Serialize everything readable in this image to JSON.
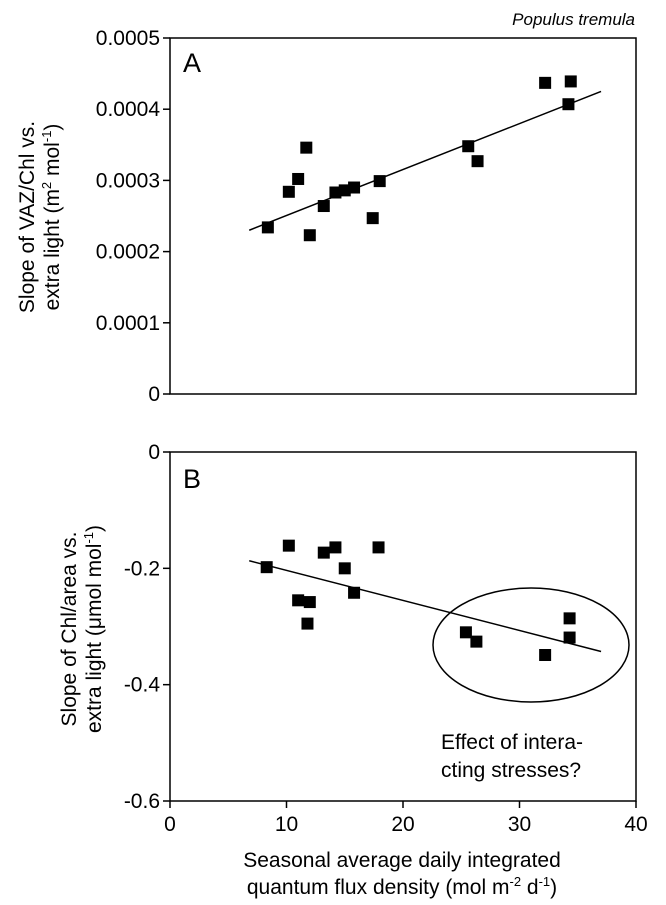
{
  "chart_data": [
    {
      "type": "scatter",
      "panel": "A",
      "species_label": "Populus tremula",
      "ylabel_line1": "Slope of VAZ/Chl vs.",
      "ylabel_line2_pre": "extra light (m",
      "ylabel_sup1": "2",
      "ylabel_mid": " mol",
      "ylabel_sup2": "-1",
      "ylabel_post": ")",
      "xlim": [
        0,
        40
      ],
      "ylim": [
        0,
        0.0005
      ],
      "y_ticks": [
        0,
        0.0001,
        0.0002,
        0.0003,
        0.0004,
        0.0005
      ],
      "y_tick_labels": [
        "0",
        "0.0001",
        "0.0002",
        "0.0003",
        "0.0004",
        "0.0005"
      ],
      "points": [
        {
          "x": 8.4,
          "y": 0.000234
        },
        {
          "x": 10.2,
          "y": 0.000284
        },
        {
          "x": 11.0,
          "y": 0.000302
        },
        {
          "x": 11.7,
          "y": 0.000346
        },
        {
          "x": 12.0,
          "y": 0.000223
        },
        {
          "x": 13.2,
          "y": 0.000264
        },
        {
          "x": 14.2,
          "y": 0.000283
        },
        {
          "x": 15.0,
          "y": 0.000286
        },
        {
          "x": 15.8,
          "y": 0.00029
        },
        {
          "x": 17.4,
          "y": 0.000247
        },
        {
          "x": 18.0,
          "y": 0.000299
        },
        {
          "x": 25.6,
          "y": 0.000348
        },
        {
          "x": 26.4,
          "y": 0.000327
        },
        {
          "x": 32.2,
          "y": 0.000437
        },
        {
          "x": 34.2,
          "y": 0.000407
        },
        {
          "x": 34.4,
          "y": 0.000439
        }
      ],
      "trendline": [
        {
          "x": 6.8,
          "y": 0.00023
        },
        {
          "x": 37.0,
          "y": 0.000425
        }
      ]
    },
    {
      "type": "scatter",
      "panel": "B",
      "ylabel_line1": "Slope of Chl/area vs.",
      "ylabel_line2_pre": "extra light (",
      "ylabel_mu": "μ",
      "ylabel_line2_post": "mol mol",
      "ylabel_sup": "-1",
      "ylabel_close": ")",
      "xlabel_line1": "Seasonal average daily integrated",
      "xlabel_line2_pre": "quantum flux density (mol m",
      "xlabel_sup1": "-2",
      "xlabel_mid": " d",
      "xlabel_sup2": "-1",
      "xlabel_post": ")",
      "xlim": [
        0,
        40
      ],
      "ylim": [
        -0.6,
        0
      ],
      "x_ticks": [
        0,
        10,
        20,
        30,
        40
      ],
      "x_tick_labels": [
        "0",
        "10",
        "20",
        "30",
        "40"
      ],
      "y_ticks": [
        0,
        -0.2,
        -0.4,
        -0.6
      ],
      "y_tick_labels": [
        "0",
        "-0.2",
        "-0.4",
        "-0.6"
      ],
      "points": [
        {
          "x": 8.3,
          "y": -0.198
        },
        {
          "x": 10.2,
          "y": -0.161
        },
        {
          "x": 11.0,
          "y": -0.255
        },
        {
          "x": 11.8,
          "y": -0.295
        },
        {
          "x": 12.0,
          "y": -0.258
        },
        {
          "x": 13.2,
          "y": -0.173
        },
        {
          "x": 14.2,
          "y": -0.164
        },
        {
          "x": 15.0,
          "y": -0.2
        },
        {
          "x": 15.8,
          "y": -0.242
        },
        {
          "x": 17.9,
          "y": -0.164
        },
        {
          "x": 25.4,
          "y": -0.31
        },
        {
          "x": 26.3,
          "y": -0.326
        },
        {
          "x": 32.2,
          "y": -0.349
        },
        {
          "x": 34.3,
          "y": -0.286
        },
        {
          "x": 34.3,
          "y": -0.319
        }
      ],
      "trendline": [
        {
          "x": 6.8,
          "y": -0.187
        },
        {
          "x": 37.0,
          "y": -0.343
        }
      ],
      "annotation_line1": "Effect of intera-",
      "annotation_line2": "cting stresses?"
    }
  ]
}
